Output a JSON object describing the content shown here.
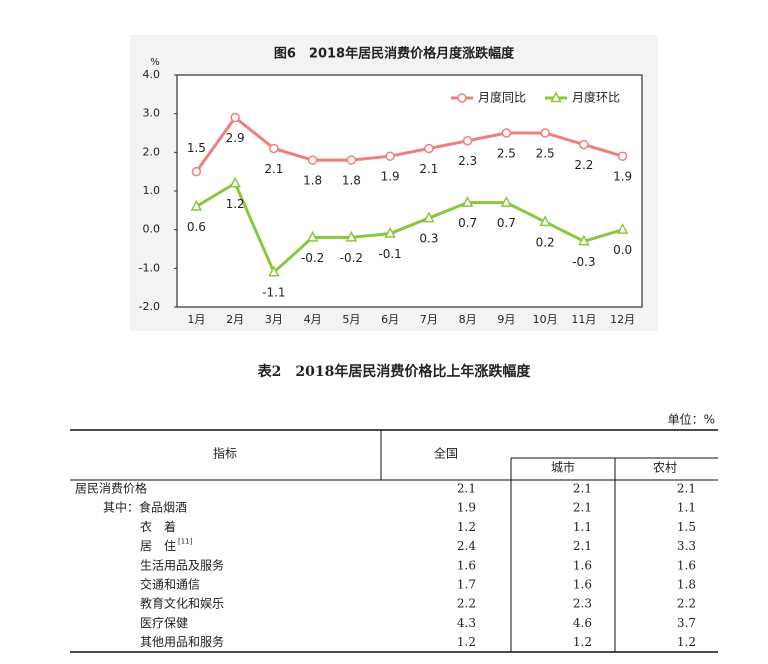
{
  "chart_data": {
    "type": "line",
    "title": "图6　2018年居民消费价格月度涨跌幅度",
    "y_unit": "%",
    "categories": [
      "1月",
      "2月",
      "3月",
      "4月",
      "5月",
      "6月",
      "7月",
      "8月",
      "9月",
      "10月",
      "11月",
      "12月"
    ],
    "series": [
      {
        "name": "月度同比",
        "color": "#ee7f7f",
        "values": [
          1.5,
          2.9,
          2.1,
          1.8,
          1.8,
          1.9,
          2.1,
          2.3,
          2.5,
          2.5,
          2.2,
          1.9
        ]
      },
      {
        "name": "月度环比",
        "color": "#8cc63f",
        "values": [
          0.6,
          1.2,
          -1.1,
          -0.2,
          -0.2,
          -0.1,
          0.3,
          0.7,
          0.7,
          0.2,
          -0.3,
          0.0
        ],
        "value_labels": [
          "0.6",
          "1.2",
          "-1.1",
          "-0.2",
          "-0.2",
          "-0.1",
          "0.3",
          "0.7",
          "0.7",
          "0.2",
          "-0.3",
          "0.0"
        ]
      }
    ],
    "ylim": [
      -2,
      4
    ],
    "yticks": [
      {
        "value": -2,
        "label": "-2.0"
      },
      {
        "value": -1,
        "label": "-1.0"
      },
      {
        "value": 0,
        "label": "0.0"
      },
      {
        "value": 1,
        "label": "1.0"
      },
      {
        "value": 2,
        "label": "2.0"
      },
      {
        "value": 3,
        "label": "3.0"
      },
      {
        "value": 4,
        "label": "4.0"
      }
    ],
    "legend": "top-right"
  },
  "table": {
    "title": "表2　2018年居民消费价格比上年涨跌幅度",
    "unit": "单位：%",
    "header": {
      "indicator": "指标",
      "national": "全国",
      "urban": "城市",
      "rural": "农村"
    },
    "rows": [
      {
        "label": "居民消费价格",
        "values": [
          2.1,
          2.1,
          2.1
        ]
      },
      {
        "label": "其中：食品烟酒",
        "values": [
          1.9,
          2.1,
          1.1
        ]
      },
      {
        "label": "衣　着",
        "values": [
          1.2,
          1.1,
          1.5
        ]
      },
      {
        "label": "居　住",
        "note": "[11]",
        "values": [
          2.4,
          2.1,
          3.3
        ]
      },
      {
        "label": "生活用品及服务",
        "values": [
          1.6,
          1.6,
          1.6
        ]
      },
      {
        "label": "交通和通信",
        "values": [
          1.7,
          1.6,
          1.8
        ]
      },
      {
        "label": "教育文化和娱乐",
        "values": [
          2.2,
          2.3,
          2.2
        ]
      },
      {
        "label": "医疗保健",
        "values": [
          4.3,
          4.6,
          3.7
        ]
      },
      {
        "label": "其他用品和服务",
        "values": [
          1.2,
          1.2,
          1.2
        ]
      }
    ]
  }
}
